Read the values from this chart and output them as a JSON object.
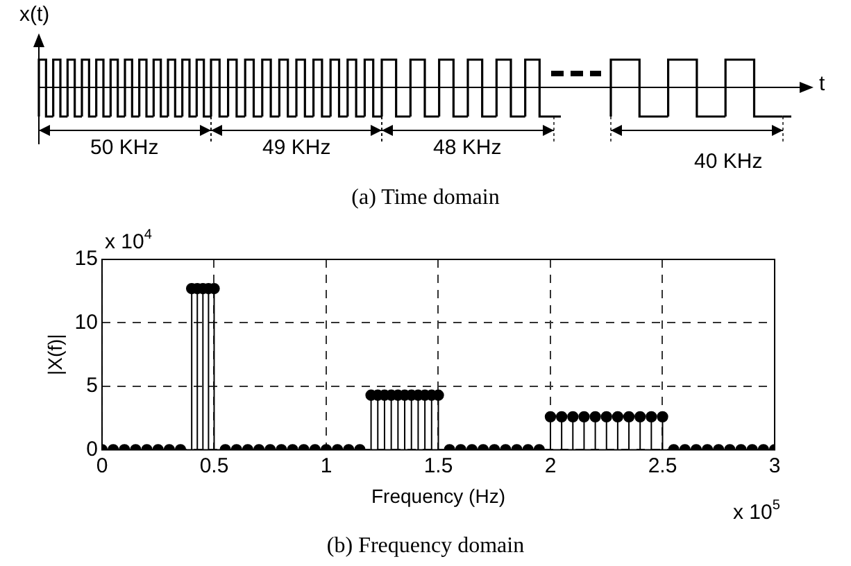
{
  "chart_data": [
    {
      "type": "other",
      "title": "(a) Time domain",
      "annotations": [
        "x(t)",
        "t",
        "50 KHz",
        "49 KHz",
        "48 KHz",
        "40 KHz"
      ]
    },
    {
      "type": "lollipop",
      "title": "(b) Frequency domain",
      "xlabel": "Frequency (Hz)",
      "ylabel": "|X(f)|",
      "x": [
        0,
        0.05,
        0.1,
        0.15,
        0.2,
        0.25,
        0.3,
        0.35,
        0.4,
        0.425,
        0.45,
        0.475,
        0.5,
        0.55,
        0.6,
        0.65,
        0.7,
        0.75,
        0.8,
        0.85,
        0.9,
        0.95,
        1,
        1.05,
        1.1,
        1.15,
        1.2,
        1.23,
        1.26,
        1.29,
        1.32,
        1.35,
        1.38,
        1.41,
        1.44,
        1.47,
        1.5,
        1.55,
        1.6,
        1.65,
        1.7,
        1.75,
        1.8,
        1.85,
        1.9,
        1.95,
        2,
        2.05,
        2.1,
        2.15,
        2.2,
        2.25,
        2.3,
        2.35,
        2.4,
        2.45,
        2.5,
        2.55,
        2.6,
        2.65,
        2.7,
        2.75,
        2.8,
        2.85,
        2.9,
        2.95,
        3
      ],
      "values": [
        0,
        0,
        0,
        0,
        0,
        0,
        0,
        0,
        12.7,
        12.7,
        12.7,
        12.7,
        12.7,
        0,
        0,
        0,
        0,
        0,
        0,
        0,
        0,
        0,
        0,
        0,
        0,
        0,
        4.3,
        4.3,
        4.3,
        4.3,
        4.3,
        4.3,
        4.3,
        4.3,
        4.3,
        4.3,
        4.3,
        0,
        0,
        0,
        0,
        0,
        0,
        0,
        0,
        0,
        2.6,
        2.6,
        2.6,
        2.6,
        2.6,
        2.6,
        2.6,
        2.6,
        2.6,
        2.6,
        2.6,
        0,
        0,
        0,
        0,
        0,
        0,
        0,
        0,
        0,
        0
      ],
      "color": "#000000",
      "marker": "circle",
      "grid": true,
      "xlim": [
        0,
        3
      ],
      "xticks": [
        0,
        0.5,
        1,
        1.5,
        2,
        2.5,
        3
      ],
      "ylim": [
        0,
        15
      ],
      "yticks": [
        0,
        5,
        10,
        15
      ],
      "annotations": [
        "x 10$^{4}$",
        "x 10$^{5}$"
      ]
    }
  ]
}
